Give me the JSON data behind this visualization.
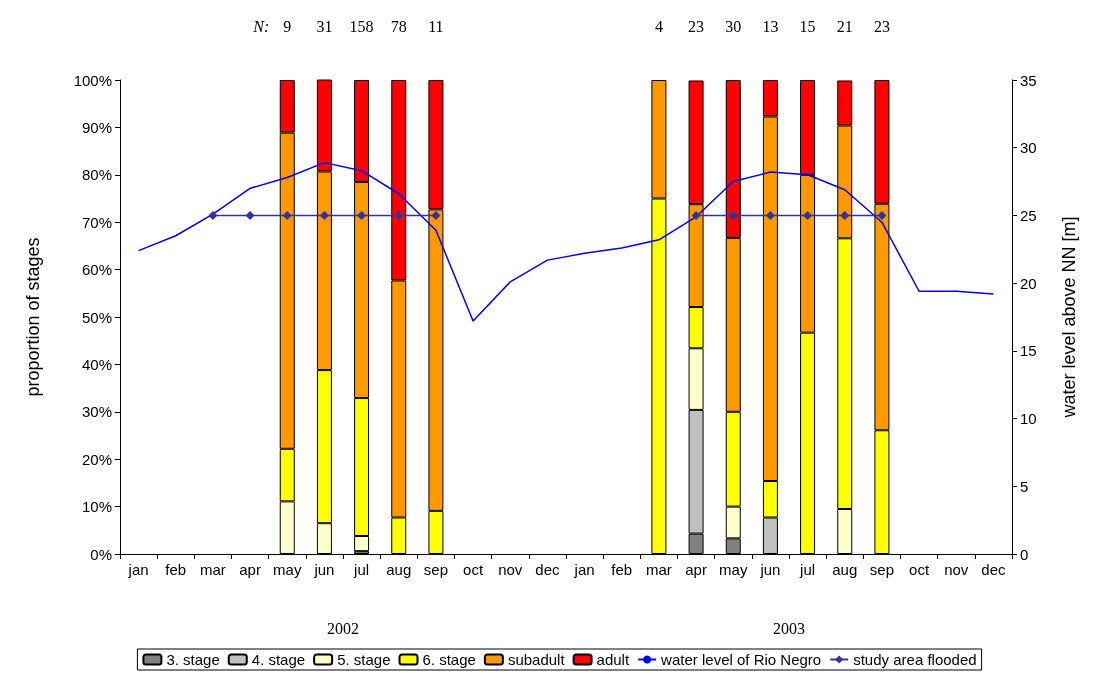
{
  "chart_data": {
    "type": "bar",
    "stacked": true,
    "ylabel": "proportion of stages",
    "y2label": "water level above NN [m]",
    "categories": [
      "jan",
      "feb",
      "mar",
      "apr",
      "may",
      "jun",
      "jul",
      "aug",
      "sep",
      "oct",
      "nov",
      "dec",
      "jan",
      "feb",
      "mar",
      "apr",
      "may",
      "jun",
      "jul",
      "aug",
      "sep",
      "oct",
      "nov",
      "dec"
    ],
    "series": [
      {
        "name": "3. stage",
        "color": "#808080",
        "values": [
          null,
          null,
          null,
          null,
          null,
          null,
          0.6,
          null,
          null,
          null,
          null,
          null,
          null,
          null,
          null,
          4.3,
          3.3,
          null,
          null,
          null,
          null,
          null,
          null,
          null
        ]
      },
      {
        "name": "4. stage",
        "color": "#c0c0c0",
        "values": [
          null,
          null,
          null,
          null,
          null,
          null,
          null,
          null,
          null,
          null,
          null,
          null,
          null,
          null,
          null,
          26.1,
          null,
          7.7,
          null,
          null,
          null,
          null,
          null,
          null
        ]
      },
      {
        "name": "5. stage",
        "color": "#ffffcc",
        "values": [
          null,
          null,
          null,
          null,
          11.1,
          6.5,
          3.2,
          null,
          null,
          null,
          null,
          null,
          null,
          null,
          null,
          13.0,
          6.7,
          null,
          null,
          9.5,
          null,
          null,
          null,
          null
        ]
      },
      {
        "name": "6. stage",
        "color": "#ffff00",
        "values": [
          null,
          null,
          null,
          null,
          11.1,
          32.3,
          29.1,
          7.7,
          9.1,
          null,
          null,
          null,
          null,
          null,
          75,
          8.7,
          20,
          7.7,
          46.7,
          57.1,
          26.1,
          null,
          null,
          null
        ]
      },
      {
        "name": "subadult",
        "color": "#ff9900",
        "values": [
          null,
          null,
          null,
          null,
          66.7,
          41.9,
          45.6,
          50.0,
          63.6,
          null,
          null,
          null,
          null,
          null,
          25,
          21.7,
          36.7,
          76.9,
          33.3,
          23.8,
          47.8,
          null,
          null,
          null
        ]
      },
      {
        "name": "adult",
        "color": "#ff0000",
        "values": [
          null,
          null,
          null,
          null,
          11.1,
          19.4,
          21.5,
          42.3,
          27.3,
          null,
          null,
          null,
          null,
          null,
          null,
          26.1,
          33.3,
          7.7,
          20,
          9.5,
          26.1,
          null,
          null,
          null
        ]
      },
      {
        "name": "water level of Rio Negro",
        "type": "line",
        "axis": "y2",
        "marker": "none",
        "color": "#0000ff",
        "values": [
          22.4,
          23.5,
          25.1,
          27.0,
          27.8,
          28.9,
          28.3,
          26.6,
          23.9,
          17.2,
          20.1,
          21.7,
          22.2,
          22.6,
          23.2,
          24.9,
          27.5,
          28.2,
          28.0,
          26.9,
          24.5,
          19.4,
          19.4,
          19.2
        ]
      },
      {
        "name": "study area flooded",
        "type": "line",
        "axis": "y2",
        "marker": "diamond",
        "color": "#333399",
        "values": [
          null,
          null,
          25,
          25,
          25,
          25,
          25,
          25,
          25,
          null,
          null,
          null,
          null,
          null,
          null,
          25,
          25,
          25,
          25,
          25,
          25,
          null,
          null,
          null
        ]
      }
    ],
    "ylim": [
      0,
      100
    ],
    "yticks": [
      {
        "value": 0,
        "label": "0%"
      },
      {
        "value": 10,
        "label": "10%"
      },
      {
        "value": 20,
        "label": "20%"
      },
      {
        "value": 30,
        "label": "30%"
      },
      {
        "value": 40,
        "label": "40%"
      },
      {
        "value": 50,
        "label": "50%"
      },
      {
        "value": 60,
        "label": "60%"
      },
      {
        "value": 70,
        "label": "70%"
      },
      {
        "value": 80,
        "label": "80%"
      },
      {
        "value": 90,
        "label": "90%"
      },
      {
        "value": 100,
        "label": "100%"
      }
    ],
    "y2lim": [
      0,
      35
    ],
    "y2ticks": [
      0,
      5,
      10,
      15,
      20,
      25,
      30,
      35
    ],
    "annotations": [
      "N:",
      "9",
      "31",
      "158",
      "78",
      "11",
      "4",
      "23",
      "30",
      "13",
      "15",
      "21",
      "23",
      "2002",
      "2003"
    ],
    "grid": false,
    "legend": "bottom",
    "line_style": "solid"
  }
}
